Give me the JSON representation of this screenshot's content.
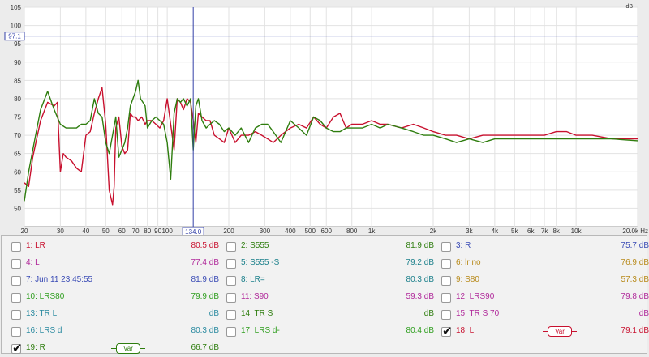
{
  "chart_data": {
    "type": "line",
    "xscale": "log",
    "xlim": [
      20,
      20000
    ],
    "ylim": [
      45,
      105
    ],
    "yunit": "dB",
    "xunit": "Hz",
    "y_ticks": [
      "50",
      "55",
      "60",
      "65",
      "70",
      "75",
      "80",
      "85",
      "90",
      "95",
      "100",
      "105"
    ],
    "x_ticks": [
      {
        "v": 20,
        "l": "20"
      },
      {
        "v": 30,
        "l": "30"
      },
      {
        "v": 40,
        "l": "40"
      },
      {
        "v": 50,
        "l": "50"
      },
      {
        "v": 60,
        "l": "60"
      },
      {
        "v": 70,
        "l": "70"
      },
      {
        "v": 80,
        "l": "80"
      },
      {
        "v": 90,
        "l": "90"
      },
      {
        "v": 100,
        "l": "100"
      },
      {
        "v": 200,
        "l": "200"
      },
      {
        "v": 300,
        "l": "300"
      },
      {
        "v": 400,
        "l": "400"
      },
      {
        "v": 500,
        "l": "500"
      },
      {
        "v": 600,
        "l": "600"
      },
      {
        "v": 800,
        "l": "800"
      },
      {
        "v": 1000,
        "l": "1k"
      },
      {
        "v": 2000,
        "l": "2k"
      },
      {
        "v": 3000,
        "l": "3k"
      },
      {
        "v": 4000,
        "l": "4k"
      },
      {
        "v": 5000,
        "l": "5k"
      },
      {
        "v": 6000,
        "l": "6k"
      },
      {
        "v": 7000,
        "l": "7k"
      },
      {
        "v": 8000,
        "l": "8k"
      },
      {
        "v": 10000,
        "l": "10k"
      },
      {
        "v": 20000,
        "l": "20.0k Hz"
      }
    ],
    "y_unit_label": "dB",
    "cursor": {
      "x": 134.0,
      "y": 97.1,
      "x_label": "134.0",
      "y_label": "97.1"
    },
    "series": [
      {
        "name": "18: L",
        "color": "#c8102e",
        "x": [
          20,
          21,
          22,
          24,
          26,
          28,
          29,
          30,
          31,
          32,
          34,
          36,
          38,
          40,
          42,
          44,
          46,
          48,
          50,
          52,
          54,
          55,
          56,
          58,
          60,
          62,
          64,
          66,
          68,
          70,
          72,
          75,
          78,
          80,
          84,
          88,
          92,
          96,
          100,
          104,
          108,
          112,
          116,
          120,
          125,
          130,
          134,
          138,
          142,
          148,
          155,
          162,
          170,
          180,
          190,
          200,
          215,
          230,
          250,
          270,
          290,
          310,
          330,
          360,
          400,
          440,
          480,
          520,
          560,
          600,
          650,
          700,
          750,
          800,
          900,
          1000,
          1100,
          1200,
          1400,
          1600,
          1800,
          2000,
          2300,
          2600,
          3000,
          3500,
          4000,
          5000,
          6000,
          7000,
          8000,
          9000,
          10000,
          12000,
          15000,
          20000
        ],
        "y": [
          57,
          56,
          64,
          74,
          79,
          78,
          79,
          60,
          65,
          64,
          63,
          61,
          60,
          70,
          71,
          76,
          80,
          83,
          73,
          55,
          51,
          56,
          72,
          75,
          67,
          65,
          66,
          76,
          75,
          75,
          74,
          75,
          73,
          74,
          74,
          73,
          72,
          74,
          80,
          73,
          66,
          80,
          79,
          77,
          80,
          79,
          74,
          68,
          76,
          75,
          74,
          74,
          70,
          69,
          68,
          72,
          68,
          70,
          70,
          71,
          70,
          69,
          68,
          70,
          72,
          73,
          72,
          75,
          73,
          72,
          75,
          76,
          72,
          73,
          73,
          74,
          73,
          73,
          72,
          73,
          72,
          71,
          70,
          70,
          69,
          70,
          70,
          70,
          70,
          70,
          71,
          71,
          70,
          70,
          69,
          69
        ]
      },
      {
        "name": "19: R",
        "color": "#2e7d0e",
        "x": [
          20,
          21,
          22,
          24,
          26,
          28,
          30,
          32,
          34,
          36,
          38,
          40,
          42,
          44,
          46,
          48,
          50,
          52,
          54,
          56,
          58,
          60,
          62,
          64,
          66,
          68,
          70,
          72,
          74,
          76,
          78,
          80,
          84,
          88,
          92,
          96,
          100,
          104,
          108,
          112,
          116,
          120,
          125,
          130,
          134,
          138,
          142,
          148,
          155,
          162,
          170,
          180,
          190,
          200,
          215,
          230,
          250,
          270,
          290,
          310,
          330,
          360,
          400,
          440,
          480,
          520,
          560,
          600,
          650,
          700,
          750,
          800,
          900,
          1000,
          1100,
          1200,
          1400,
          1600,
          1800,
          2000,
          2300,
          2600,
          3000,
          3500,
          4000,
          5000,
          6000,
          7000,
          8000,
          9000,
          10000,
          12000,
          15000,
          20000
        ],
        "y": [
          52,
          60,
          66,
          77,
          82,
          77,
          73,
          72,
          72,
          72,
          73,
          73,
          74,
          80,
          76,
          75,
          68,
          65,
          70,
          75,
          64,
          66,
          68,
          72,
          78,
          80,
          82,
          85,
          80,
          79,
          78,
          72,
          74,
          75,
          74,
          73,
          68,
          58,
          76,
          80,
          79,
          80,
          78,
          80,
          66,
          78,
          80,
          74,
          72,
          73,
          74,
          73,
          71,
          72,
          70,
          72,
          68,
          72,
          73,
          73,
          71,
          68,
          74,
          72,
          70,
          75,
          74,
          72,
          71,
          71,
          72,
          72,
          72,
          73,
          72,
          73,
          72,
          71,
          70,
          70,
          69,
          68,
          69,
          68,
          69,
          69,
          69,
          69,
          69,
          69,
          69,
          69,
          69,
          68.5
        ]
      }
    ]
  },
  "legend": {
    "items": [
      {
        "id": "i1",
        "label": "1: LR",
        "value": "80.5 dB",
        "color": "#c8102e",
        "checked": false
      },
      {
        "id": "i2",
        "label": "2: S555",
        "value": "81.9 dB",
        "color": "#2e7d0e",
        "checked": false
      },
      {
        "id": "i3",
        "label": "3: R",
        "value": "75.7 dB",
        "color": "#3a4bb5",
        "checked": false
      },
      {
        "id": "i4",
        "label": "4: L",
        "value": "77.4 dB",
        "color": "#b0289a",
        "checked": false
      },
      {
        "id": "i5",
        "label": "5: S555 -S",
        "value": "79.2 dB",
        "color": "#1a7f8a",
        "checked": false
      },
      {
        "id": "i6",
        "label": "6: lr no",
        "value": "76.9 dB",
        "color": "#b88a1a",
        "checked": false
      },
      {
        "id": "i7",
        "label": "7: Jun 11 23:45:55",
        "value": "81.9 dB",
        "color": "#3a4bb5",
        "checked": false
      },
      {
        "id": "i8",
        "label": "8: LR=",
        "value": "80.3 dB",
        "color": "#1a7f8a",
        "checked": false
      },
      {
        "id": "i9",
        "label": "9: S80",
        "value": "57.3 dB",
        "color": "#b88a1a",
        "checked": false
      },
      {
        "id": "i10",
        "label": "10: LRS80",
        "value": "79.9 dB",
        "color": "#2e9e1e",
        "checked": false
      },
      {
        "id": "i11",
        "label": "11: S90",
        "value": "59.3 dB",
        "color": "#b0289a",
        "checked": false
      },
      {
        "id": "i12",
        "label": "12: LRS90",
        "value": "79.8 dB",
        "color": "#b0289a",
        "checked": false
      },
      {
        "id": "i13",
        "label": "13: TR L",
        "value": "dB",
        "color": "#2a8aa0",
        "checked": false
      },
      {
        "id": "i14",
        "label": "14: TR S",
        "value": "dB",
        "color": "#2e7d0e",
        "checked": false
      },
      {
        "id": "i15",
        "label": "15: TR S 70",
        "value": "dB",
        "color": "#b0289a",
        "checked": false
      },
      {
        "id": "i16",
        "label": "16: LRS d",
        "value": "80.3 dB",
        "color": "#2a8aa0",
        "checked": false
      },
      {
        "id": "i17",
        "label": "17: LRS d-",
        "value": "80.4 dB",
        "color": "#2e9e1e",
        "checked": false
      },
      {
        "id": "i18",
        "label": "18: L",
        "value": "79.1 dB",
        "color": "#c8102e",
        "checked": true,
        "var": "Var"
      },
      {
        "id": "i19",
        "label": "19: R",
        "value": "66.7 dB",
        "color": "#2e7d0e",
        "checked": true,
        "var": "Var"
      }
    ]
  }
}
